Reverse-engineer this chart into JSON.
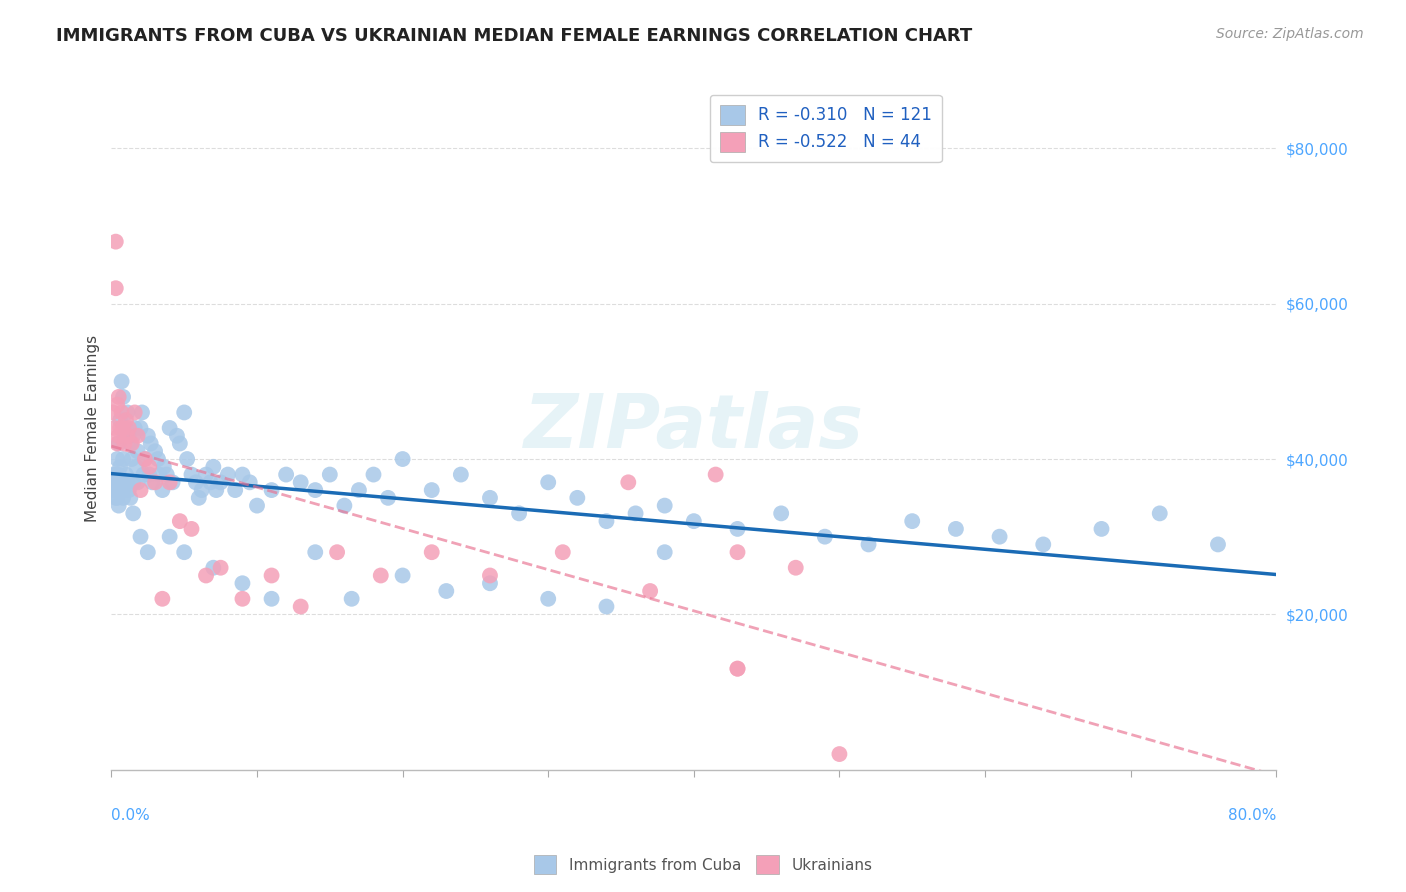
{
  "title": "IMMIGRANTS FROM CUBA VS UKRAINIAN MEDIAN FEMALE EARNINGS CORRELATION CHART",
  "source": "Source: ZipAtlas.com",
  "ylabel": "Median Female Earnings",
  "yticks": [
    20000,
    40000,
    60000,
    80000
  ],
  "ytick_labels": [
    "$20,000",
    "$40,000",
    "$60,000",
    "$80,000"
  ],
  "xlim": [
    0.0,
    0.8
  ],
  "ylim": [
    0,
    88000
  ],
  "cuba_R": -0.31,
  "cuba_N": 121,
  "ukraine_R": -0.522,
  "ukraine_N": 44,
  "cuba_color": "#a8c8e8",
  "ukraine_color": "#f4a0b8",
  "cuba_line_color": "#1a6bb5",
  "ukraine_line_color": "#e87090",
  "background_color": "#ffffff",
  "cuba_points_x": [
    0.001,
    0.002,
    0.002,
    0.003,
    0.003,
    0.003,
    0.004,
    0.004,
    0.004,
    0.005,
    0.005,
    0.005,
    0.005,
    0.006,
    0.006,
    0.006,
    0.007,
    0.007,
    0.008,
    0.008,
    0.008,
    0.009,
    0.009,
    0.01,
    0.01,
    0.011,
    0.011,
    0.012,
    0.012,
    0.013,
    0.013,
    0.014,
    0.015,
    0.015,
    0.016,
    0.017,
    0.018,
    0.018,
    0.02,
    0.021,
    0.022,
    0.023,
    0.025,
    0.026,
    0.027,
    0.028,
    0.03,
    0.032,
    0.033,
    0.035,
    0.036,
    0.038,
    0.04,
    0.042,
    0.045,
    0.047,
    0.05,
    0.052,
    0.055,
    0.058,
    0.06,
    0.062,
    0.065,
    0.068,
    0.07,
    0.072,
    0.075,
    0.08,
    0.085,
    0.09,
    0.095,
    0.1,
    0.11,
    0.12,
    0.13,
    0.14,
    0.15,
    0.16,
    0.17,
    0.18,
    0.19,
    0.2,
    0.22,
    0.24,
    0.26,
    0.28,
    0.3,
    0.32,
    0.34,
    0.36,
    0.38,
    0.4,
    0.43,
    0.46,
    0.49,
    0.52,
    0.55,
    0.58,
    0.61,
    0.64,
    0.68,
    0.72,
    0.76,
    0.005,
    0.008,
    0.015,
    0.02,
    0.025,
    0.04,
    0.05,
    0.07,
    0.09,
    0.11,
    0.14,
    0.165,
    0.2,
    0.23,
    0.26,
    0.3,
    0.34,
    0.38
  ],
  "cuba_points_y": [
    38000,
    36000,
    37000,
    35000,
    38000,
    36000,
    40000,
    37000,
    35000,
    42000,
    38000,
    36000,
    34000,
    45000,
    39000,
    36000,
    50000,
    37000,
    48000,
    40000,
    36000,
    43000,
    37000,
    44000,
    38000,
    46000,
    37000,
    43000,
    36000,
    42000,
    35000,
    40000,
    43000,
    37000,
    44000,
    39000,
    41000,
    37000,
    44000,
    46000,
    38000,
    40000,
    43000,
    38000,
    42000,
    37000,
    41000,
    40000,
    38000,
    36000,
    39000,
    38000,
    44000,
    37000,
    43000,
    42000,
    46000,
    40000,
    38000,
    37000,
    35000,
    36000,
    38000,
    37000,
    39000,
    36000,
    37000,
    38000,
    36000,
    38000,
    37000,
    34000,
    36000,
    38000,
    37000,
    36000,
    38000,
    34000,
    36000,
    38000,
    35000,
    40000,
    36000,
    38000,
    35000,
    33000,
    37000,
    35000,
    32000,
    33000,
    34000,
    32000,
    31000,
    33000,
    30000,
    29000,
    32000,
    31000,
    30000,
    29000,
    31000,
    33000,
    29000,
    37000,
    35000,
    33000,
    30000,
    28000,
    30000,
    28000,
    26000,
    24000,
    22000,
    28000,
    22000,
    25000,
    23000,
    24000,
    22000,
    21000,
    28000
  ],
  "ukraine_points_x": [
    0.001,
    0.002,
    0.003,
    0.003,
    0.004,
    0.005,
    0.005,
    0.006,
    0.007,
    0.008,
    0.009,
    0.01,
    0.011,
    0.012,
    0.014,
    0.016,
    0.018,
    0.02,
    0.023,
    0.026,
    0.03,
    0.035,
    0.04,
    0.047,
    0.055,
    0.065,
    0.075,
    0.09,
    0.11,
    0.13,
    0.155,
    0.185,
    0.22,
    0.26,
    0.31,
    0.37,
    0.43,
    0.355,
    0.415,
    0.43,
    0.47,
    0.43,
    0.5,
    0.004
  ],
  "ukraine_points_y": [
    46000,
    44000,
    68000,
    62000,
    42000,
    48000,
    43000,
    44000,
    46000,
    44000,
    42000,
    45000,
    43000,
    44000,
    42000,
    46000,
    43000,
    36000,
    40000,
    39000,
    37000,
    22000,
    37000,
    32000,
    31000,
    25000,
    26000,
    22000,
    25000,
    21000,
    28000,
    25000,
    28000,
    25000,
    28000,
    23000,
    28000,
    37000,
    38000,
    13000,
    26000,
    13000,
    2000,
    47000
  ]
}
